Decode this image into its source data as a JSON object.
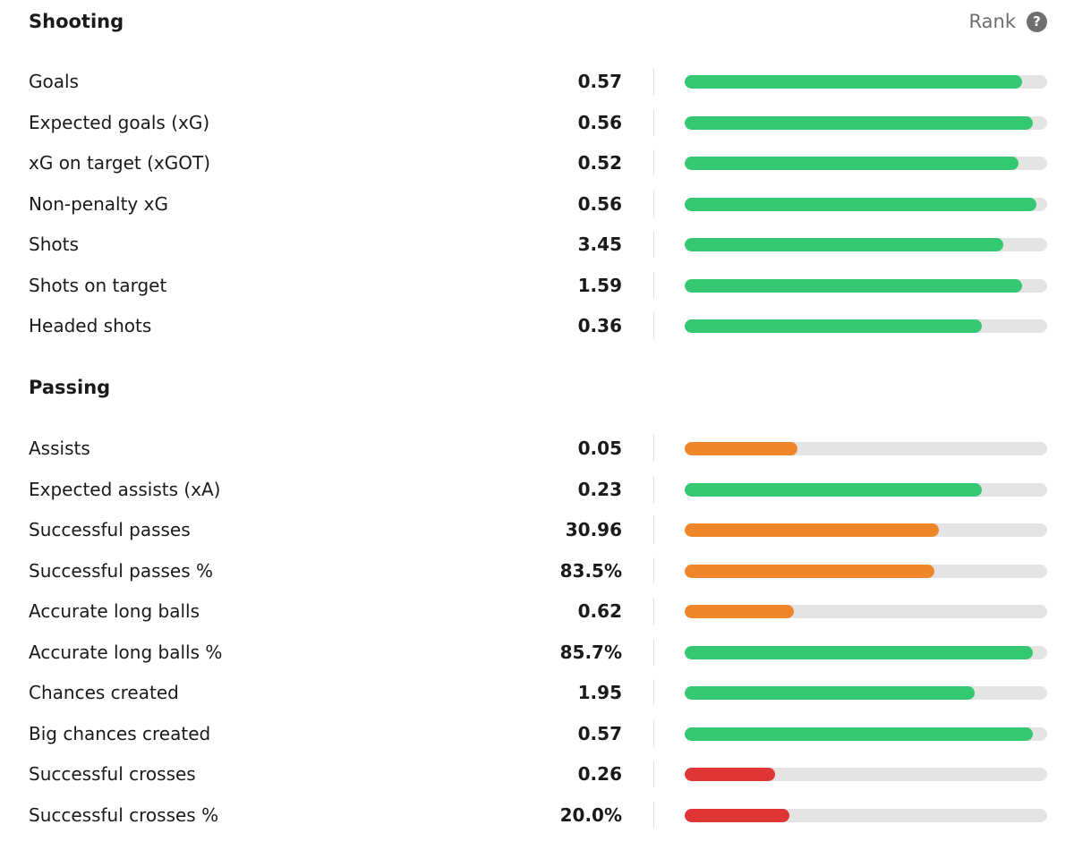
{
  "colors": {
    "good": "#35c872",
    "mid": "#f0862a",
    "bad": "#e03535",
    "track": "#e4e4e4"
  },
  "header": {
    "rank_label": "Rank",
    "help_icon": "question-mark-icon",
    "help_glyph": "?"
  },
  "sections": [
    {
      "title": "Shooting",
      "stats": [
        {
          "label": "Goals",
          "value": "0.57",
          "percentile": 0.93,
          "color": "good"
        },
        {
          "label": "Expected goals (xG)",
          "value": "0.56",
          "percentile": 0.96,
          "color": "good"
        },
        {
          "label": "xG on target (xGOT)",
          "value": "0.52",
          "percentile": 0.92,
          "color": "good"
        },
        {
          "label": "Non-penalty xG",
          "value": "0.56",
          "percentile": 0.97,
          "color": "good"
        },
        {
          "label": "Shots",
          "value": "3.45",
          "percentile": 0.88,
          "color": "good"
        },
        {
          "label": "Shots on target",
          "value": "1.59",
          "percentile": 0.93,
          "color": "good"
        },
        {
          "label": "Headed shots",
          "value": "0.36",
          "percentile": 0.82,
          "color": "good"
        }
      ]
    },
    {
      "title": "Passing",
      "stats": [
        {
          "label": "Assists",
          "value": "0.05",
          "percentile": 0.31,
          "color": "mid"
        },
        {
          "label": "Expected assists (xA)",
          "value": "0.23",
          "percentile": 0.82,
          "color": "good"
        },
        {
          "label": "Successful passes",
          "value": "30.96",
          "percentile": 0.7,
          "color": "mid"
        },
        {
          "label": "Successful passes %",
          "value": "83.5%",
          "percentile": 0.69,
          "color": "mid"
        },
        {
          "label": "Accurate long balls",
          "value": "0.62",
          "percentile": 0.3,
          "color": "mid"
        },
        {
          "label": "Accurate long balls %",
          "value": "85.7%",
          "percentile": 0.96,
          "color": "good"
        },
        {
          "label": "Chances created",
          "value": "1.95",
          "percentile": 0.8,
          "color": "good"
        },
        {
          "label": "Big chances created",
          "value": "0.57",
          "percentile": 0.96,
          "color": "good"
        },
        {
          "label": "Successful crosses",
          "value": "0.26",
          "percentile": 0.25,
          "color": "bad"
        },
        {
          "label": "Successful crosses %",
          "value": "20.0%",
          "percentile": 0.29,
          "color": "bad"
        }
      ]
    }
  ]
}
